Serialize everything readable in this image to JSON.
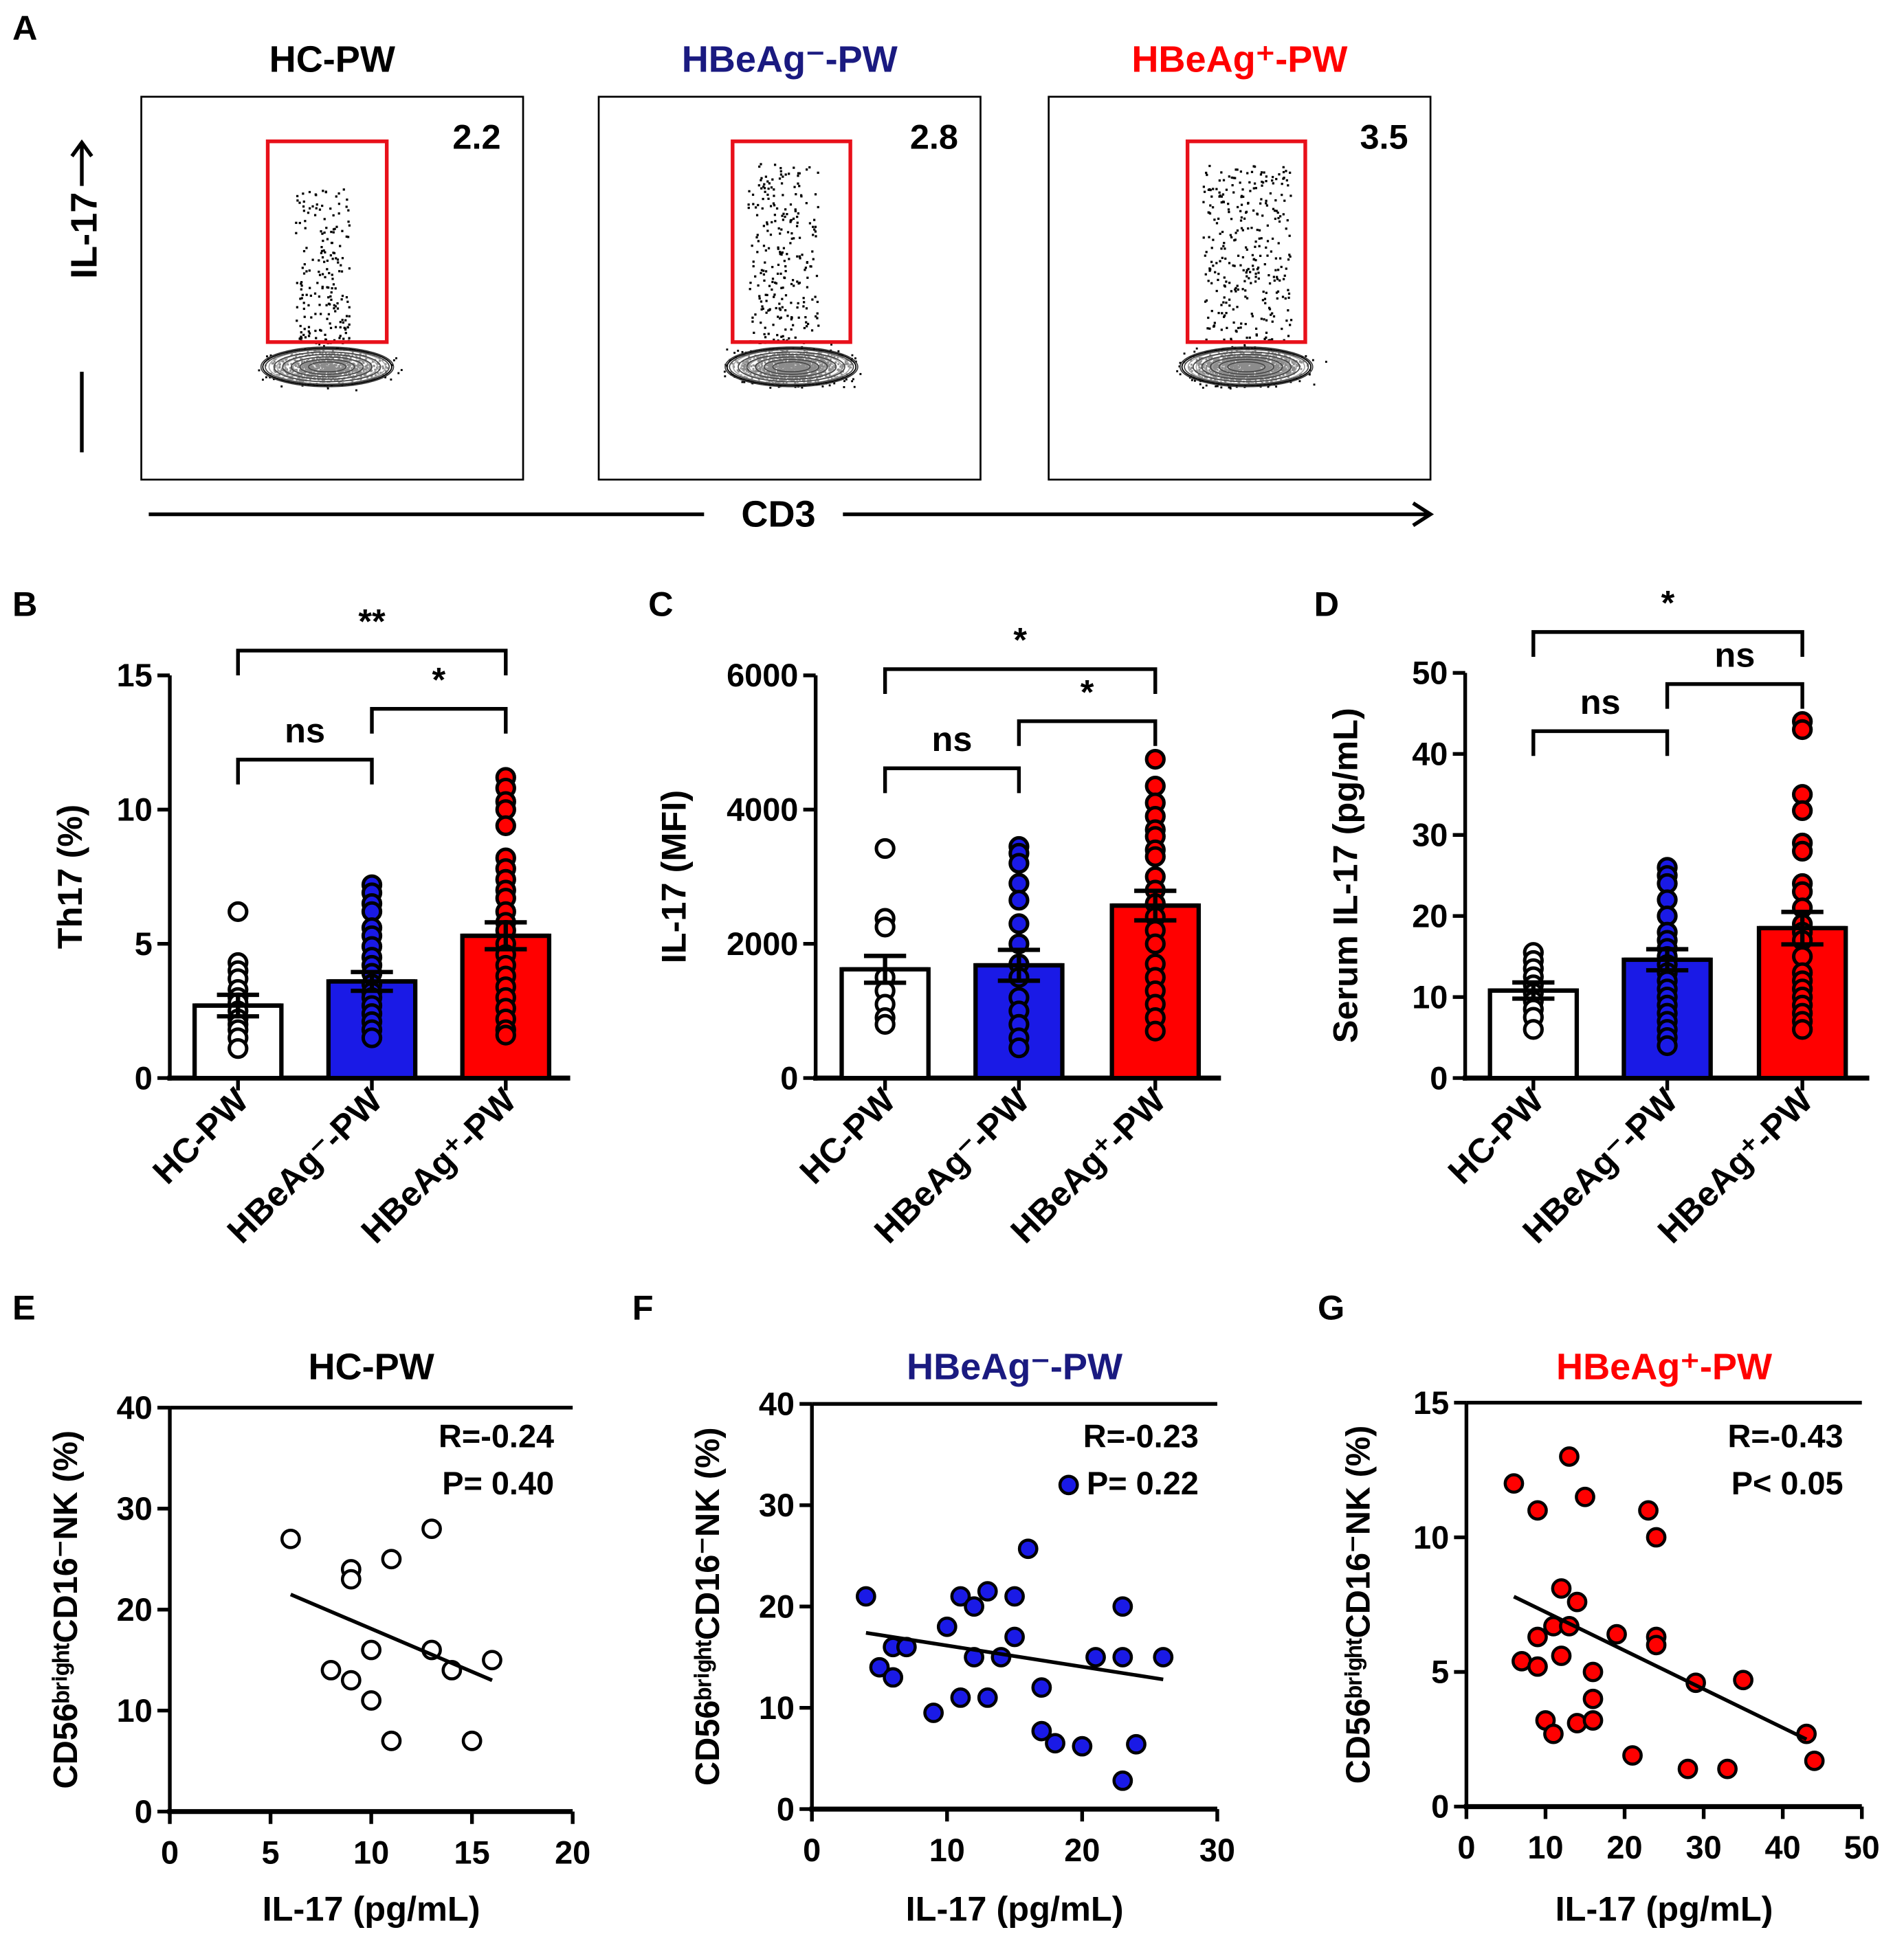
{
  "colors": {
    "hc": "#ffffff",
    "neg": "#1a1ae6",
    "pos": "#ff0000",
    "neg_title": "#1a1a80",
    "gate": "#e8101a"
  },
  "panel_labels": {
    "A": "A",
    "B": "B",
    "C": "C",
    "D": "D",
    "E": "E",
    "F": "F",
    "G": "G"
  },
  "flow": {
    "y_axis_label": "IL-17",
    "x_axis_label": "CD3",
    "plots": [
      {
        "title": "HC-PW",
        "gate_value": "2.2",
        "density": 0.022
      },
      {
        "title": "HBeAg⁻-PW",
        "gate_value": "2.8",
        "density": 0.028
      },
      {
        "title": "HBeAg⁺-PW",
        "gate_value": "3.5",
        "density": 0.035
      }
    ]
  },
  "chart_data": [
    {
      "id": "B",
      "type": "bar",
      "ylabel": "Th17 (%)",
      "ylim": [
        0,
        15
      ],
      "yticks": [
        "0",
        "5",
        "10",
        "15"
      ],
      "categories": [
        "HC-PW",
        "HBeAg⁻-PW",
        "HBeAg⁺-PW"
      ],
      "means": [
        2.7,
        3.6,
        5.3
      ],
      "sem": [
        0.4,
        0.35,
        0.5
      ],
      "points": [
        [
          6.2,
          4.3,
          4.0,
          3.7,
          3.3,
          3.0,
          2.8,
          2.5,
          2.2,
          2.0,
          1.8,
          1.5,
          1.1
        ],
        [
          7.2,
          6.9,
          6.5,
          6.2,
          5.6,
          5.3,
          4.9,
          4.5,
          4.2,
          3.9,
          3.5,
          3.2,
          3.0,
          2.7,
          2.4,
          2.1,
          1.8,
          1.5
        ],
        [
          11.2,
          10.8,
          10.3,
          10.0,
          9.4,
          8.2,
          7.8,
          7.4,
          7.0,
          6.7,
          6.2,
          5.8,
          5.5,
          5.0,
          4.6,
          4.2,
          3.8,
          3.4,
          3.0,
          2.6,
          2.2,
          1.8,
          1.6
        ]
      ],
      "significance": [
        {
          "pair": [
            0,
            2
          ],
          "label": "**"
        },
        {
          "pair": [
            1,
            2
          ],
          "label": "*"
        },
        {
          "pair": [
            0,
            1
          ],
          "label": "ns"
        }
      ]
    },
    {
      "id": "C",
      "type": "bar",
      "ylabel": "IL-17 (MFI)",
      "ylim": [
        0,
        6000
      ],
      "yticks": [
        "0",
        "2000",
        "4000",
        "6000"
      ],
      "categories": [
        "HC-PW",
        "HBeAg⁻-PW",
        "HBeAg⁺-PW"
      ],
      "means": [
        1620,
        1680,
        2570
      ],
      "sem": [
        200,
        230,
        220
      ],
      "points": [
        [
          3420,
          2380,
          2250,
          1500,
          1300,
          1100,
          900,
          800
        ],
        [
          3450,
          3350,
          3200,
          2900,
          2650,
          2300,
          2000,
          1700,
          1500,
          1200,
          1000,
          800,
          600,
          450
        ],
        [
          4750,
          4350,
          4100,
          3900,
          3700,
          3600,
          3400,
          3300,
          3000,
          2800,
          2600,
          2400,
          2200,
          2000,
          1700,
          1500,
          1300,
          1100,
          900,
          700
        ]
      ],
      "significance": [
        {
          "pair": [
            0,
            2
          ],
          "label": "*"
        },
        {
          "pair": [
            1,
            2
          ],
          "label": "*"
        },
        {
          "pair": [
            0,
            1
          ],
          "label": "ns"
        }
      ]
    },
    {
      "id": "D",
      "type": "bar",
      "ylabel": "Serum IL-17 (pg/mL)",
      "ylim": [
        0,
        50
      ],
      "yticks": [
        "0",
        "10",
        "20",
        "30",
        "40",
        "50"
      ],
      "categories": [
        "HC-PW",
        "HBeAg⁻-PW",
        "HBeAg⁺-PW"
      ],
      "means": [
        10.8,
        14.6,
        18.5
      ],
      "sem": [
        1.0,
        1.3,
        2.0
      ],
      "points": [
        [
          15.5,
          14.5,
          13.5,
          12.5,
          11.5,
          10.5,
          9.5,
          8.5,
          7.5,
          6.0
        ],
        [
          26,
          25,
          24,
          22,
          20,
          18,
          17,
          16,
          15,
          14,
          13,
          12,
          11,
          10,
          9,
          8,
          7,
          6,
          5,
          4
        ],
        [
          44,
          43,
          35,
          33,
          29,
          28,
          24,
          23,
          21,
          19,
          18,
          17,
          15,
          13,
          12,
          11,
          10,
          9,
          8,
          7,
          6
        ]
      ],
      "significance": [
        {
          "pair": [
            0,
            2
          ],
          "label": "*"
        },
        {
          "pair": [
            1,
            2
          ],
          "label": "ns"
        },
        {
          "pair": [
            0,
            1
          ],
          "label": "ns"
        }
      ]
    },
    {
      "id": "E",
      "type": "scatter",
      "title": "HC-PW",
      "xlabel": "IL-17 (pg/mL)",
      "ylabel": "CD56ᵇʳⁱᵍʰᵗCD16⁻NK (%)",
      "xlim": [
        0,
        20
      ],
      "ylim": [
        0,
        40
      ],
      "xticks": [
        "0",
        "5",
        "10",
        "15",
        "20"
      ],
      "yticks": [
        "0",
        "10",
        "20",
        "30",
        "40"
      ],
      "stat_r": "R=-0.24",
      "stat_p": "P= 0.40",
      "points": [
        [
          6,
          27
        ],
        [
          9,
          24
        ],
        [
          9,
          23
        ],
        [
          11,
          25
        ],
        [
          13,
          28
        ],
        [
          8,
          14
        ],
        [
          9,
          13
        ],
        [
          10,
          16
        ],
        [
          10,
          11
        ],
        [
          11,
          7
        ],
        [
          13,
          16
        ],
        [
          14,
          14
        ],
        [
          15,
          7
        ],
        [
          16,
          15
        ]
      ],
      "fit": [
        [
          6,
          21.5
        ],
        [
          16,
          13
        ]
      ]
    },
    {
      "id": "F",
      "type": "scatter",
      "title": "HBeAg⁻-PW",
      "xlabel": "IL-17 (pg/mL)",
      "ylabel": "CD56ᵇʳⁱᵍʰᵗCD16⁻NK (%)",
      "xlim": [
        0,
        30
      ],
      "ylim": [
        0,
        40
      ],
      "xticks": [
        "0",
        "10",
        "20",
        "30"
      ],
      "yticks": [
        "0",
        "10",
        "20",
        "30",
        "40"
      ],
      "stat_r": "R=-0.23",
      "stat_p": "P= 0.22",
      "points": [
        [
          4,
          21
        ],
        [
          5,
          14
        ],
        [
          6,
          13
        ],
        [
          6,
          16
        ],
        [
          7,
          16
        ],
        [
          9,
          9.5
        ],
        [
          10,
          18
        ],
        [
          11,
          21
        ],
        [
          11,
          11
        ],
        [
          12,
          20
        ],
        [
          12,
          15
        ],
        [
          13,
          21.5
        ],
        [
          13,
          11
        ],
        [
          14,
          15
        ],
        [
          15,
          21
        ],
        [
          15,
          17
        ],
        [
          16,
          25.7
        ],
        [
          17,
          12
        ],
        [
          17,
          7.7
        ],
        [
          18,
          6.5
        ],
        [
          19,
          32
        ],
        [
          20,
          6.2
        ],
        [
          21,
          15
        ],
        [
          23,
          20
        ],
        [
          23,
          15
        ],
        [
          23,
          2.8
        ],
        [
          24,
          6.4
        ],
        [
          26,
          15
        ]
      ],
      "fit": [
        [
          4,
          17.4
        ],
        [
          26,
          12.8
        ]
      ]
    },
    {
      "id": "G",
      "type": "scatter",
      "title": "HBeAg⁺-PW",
      "xlabel": "IL-17 (pg/mL)",
      "ylabel": "CD56ᵇʳⁱᵍʰᵗCD16⁻NK (%)",
      "xlim": [
        0,
        50
      ],
      "ylim": [
        0,
        15
      ],
      "xticks": [
        "0",
        "10",
        "20",
        "30",
        "40",
        "50"
      ],
      "yticks": [
        "0",
        "5",
        "10",
        "15"
      ],
      "stat_r": "R=-0.43",
      "stat_p": "P< 0.05",
      "points": [
        [
          6,
          12
        ],
        [
          9,
          11
        ],
        [
          13,
          13
        ],
        [
          15,
          11.5
        ],
        [
          23,
          11
        ],
        [
          24,
          10
        ],
        [
          12,
          8.1
        ],
        [
          14,
          7.6
        ],
        [
          11,
          6.7
        ],
        [
          13,
          6.7
        ],
        [
          9,
          6.3
        ],
        [
          19,
          6.4
        ],
        [
          24,
          6.3
        ],
        [
          24,
          6
        ],
        [
          12,
          5.6
        ],
        [
          7,
          5.4
        ],
        [
          9,
          5.2
        ],
        [
          16,
          5
        ],
        [
          29,
          4.6
        ],
        [
          35,
          4.7
        ],
        [
          16,
          4
        ],
        [
          10,
          3.2
        ],
        [
          14,
          3.1
        ],
        [
          16,
          3.2
        ],
        [
          11,
          2.7
        ],
        [
          21,
          1.9
        ],
        [
          43,
          2.7
        ],
        [
          44,
          1.7
        ],
        [
          28,
          1.4
        ],
        [
          33,
          1.4
        ]
      ],
      "fit": [
        [
          6,
          7.8
        ],
        [
          43,
          2.5
        ]
      ]
    }
  ]
}
